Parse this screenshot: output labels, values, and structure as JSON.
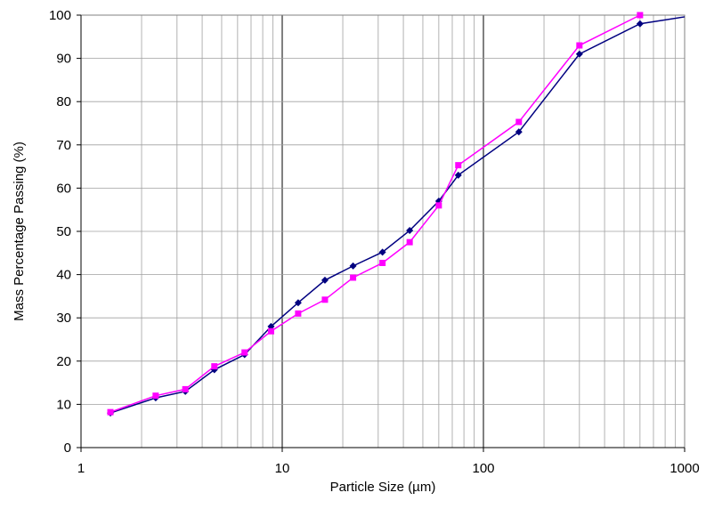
{
  "chart_data": {
    "type": "line",
    "title": "",
    "xlabel": "Particle Size (µm)",
    "ylabel": "Mass Percentage Passing (%)",
    "xscale": "log",
    "xlim": [
      1,
      1000
    ],
    "ylim": [
      0,
      100
    ],
    "x_ticks": [
      "1",
      "10",
      "100",
      "1000"
    ],
    "y_ticks": [
      "0",
      "10",
      "20",
      "30",
      "40",
      "50",
      "60",
      "70",
      "80",
      "90",
      "100"
    ],
    "grid": true,
    "legend": "none",
    "series": [
      {
        "color": "#000080",
        "marker": "diamond",
        "x": [
          1.4,
          2.35,
          3.3,
          4.6,
          6.5,
          8.8,
          12,
          16.3,
          22.5,
          31.5,
          43,
          60,
          75,
          150,
          300,
          600,
          1000
        ],
        "y": [
          8,
          11.5,
          13,
          18,
          21.5,
          28,
          33.5,
          38.7,
          42,
          45.2,
          50.2,
          57,
          63,
          73,
          91,
          98,
          99.6
        ]
      },
      {
        "color": "#ff00ff",
        "marker": "square",
        "x": [
          1.4,
          2.35,
          3.3,
          4.6,
          6.5,
          8.8,
          12,
          16.3,
          22.5,
          31.5,
          43,
          60,
          75,
          150,
          300,
          600
        ],
        "y": [
          8.2,
          12,
          13.5,
          18.8,
          22,
          26.9,
          31,
          34.2,
          39.3,
          42.7,
          47.5,
          56,
          65.3,
          75.3,
          93,
          100
        ]
      }
    ]
  }
}
